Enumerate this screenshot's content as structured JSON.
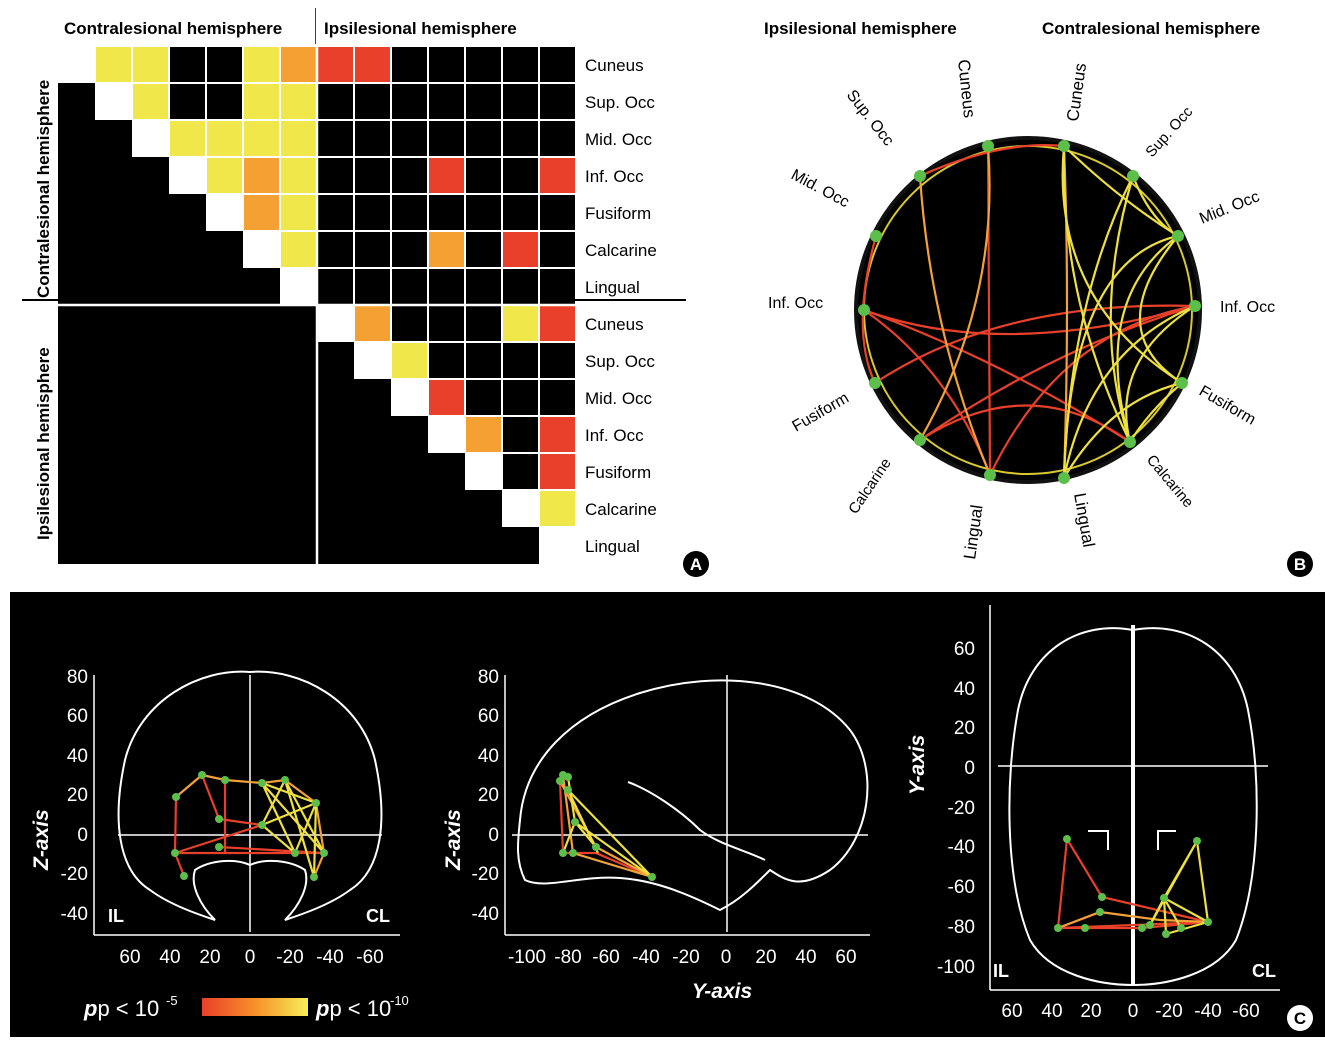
{
  "panelA": {
    "header_contra": "Contralesional hemisphere",
    "header_ipsi": "Ipsilesional hemisphere",
    "side_contra": "Contralesional hemisphere",
    "side_ipsi": "Ipsilesional hemisphere",
    "row_labels": [
      "Cuneus",
      "Sup. Occ",
      "Mid. Occ",
      "Inf. Occ",
      "Fusiform",
      "Calcarine",
      "Lingual",
      "Cuneus",
      "Sup. Occ",
      "Mid. Occ",
      "Inf. Occ",
      "Fusiform",
      "Calcarine",
      "Lingual"
    ],
    "badge": "A"
  },
  "panelB": {
    "header_ipsi": "Ipsilesional hemisphere",
    "header_contra": "Contralesional hemisphere",
    "left_labels": [
      "Cuneus",
      "Sup. Occ",
      "Mid. Occ",
      "Inf. Occ",
      "Fusiform",
      "Calcarine",
      "Lingual"
    ],
    "right_labels": [
      "Cuneus",
      "Sup. Occ",
      "Mid. Occ",
      "Inf. Occ",
      "Fusiform",
      "Calcarine",
      "Lingual"
    ],
    "badge": "B"
  },
  "panelC": {
    "coronal": {
      "ylabel": "Z-axis",
      "yticks": [
        "80",
        "60",
        "40",
        "20",
        "0",
        "-20",
        "-40"
      ],
      "xticks": [
        "60",
        "40",
        "20",
        "0",
        "-20",
        "-40",
        "-60"
      ],
      "left_tag": "IL",
      "right_tag": "CL"
    },
    "sagittal": {
      "ylabel": "Z-axis",
      "xlabel": "Y-axis",
      "yticks": [
        "80",
        "60",
        "40",
        "20",
        "0",
        "-20",
        "-40"
      ],
      "xticks": [
        "-100",
        "-80",
        "-60",
        "-40",
        "-20",
        "0",
        "20",
        "40",
        "60"
      ]
    },
    "axial": {
      "ylabel": "Y-axis",
      "yticks": [
        "60",
        "40",
        "20",
        "0",
        "-20",
        "-40",
        "-60",
        "-80",
        "-100"
      ],
      "xticks": [
        "60",
        "40",
        "20",
        "0",
        "-20",
        "-40",
        "-60"
      ],
      "left_tag": "IL",
      "right_tag": "CL"
    },
    "legend_low": "p < 10",
    "legend_low_exp": "-5",
    "legend_high": "p < 10",
    "legend_high_exp": "-10",
    "badge": "C"
  },
  "colors": {
    "black": "#000000",
    "white": "#ffffff",
    "red": "#e8402a",
    "orange": "#f7902a",
    "yellow": "#f0e23a",
    "node": "#5cbf4a"
  }
}
